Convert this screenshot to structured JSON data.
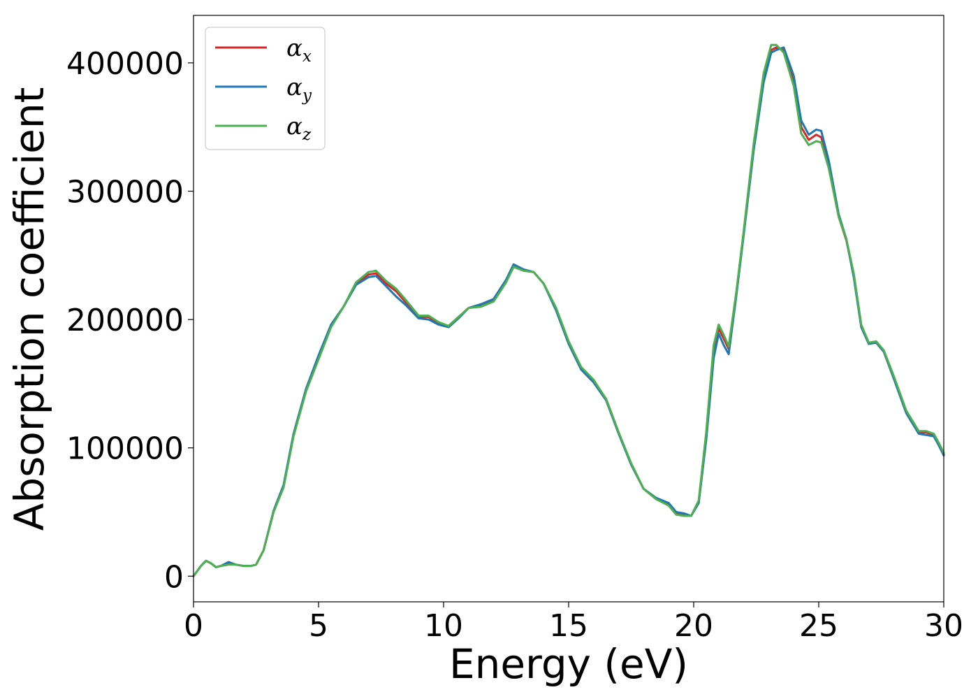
{
  "chart_data": {
    "type": "line",
    "title": "",
    "xlabel": "Energy (eV)",
    "ylabel": "Absorption coefficient",
    "xlim": [
      0,
      30
    ],
    "ylim": [
      -20000,
      437000
    ],
    "xticks": [
      0,
      5,
      10,
      15,
      20,
      25,
      30
    ],
    "yticks": [
      0,
      100000,
      200000,
      300000,
      400000
    ],
    "xtick_labels": [
      "0",
      "5",
      "10",
      "15",
      "20",
      "25",
      "30"
    ],
    "ytick_labels": [
      "0",
      "100000",
      "200000",
      "300000",
      "400000"
    ],
    "grid": false,
    "legend": {
      "position": "top-left",
      "entries": [
        {
          "base": "α",
          "sub": "x"
        },
        {
          "base": "α",
          "sub": "y"
        },
        {
          "base": "α",
          "sub": "z"
        }
      ]
    },
    "colors": [
      "#d62728",
      "#1f77b4",
      "#4caf50"
    ],
    "series": [
      {
        "x": [
          0,
          0.3,
          0.5,
          0.7,
          0.9,
          1.1,
          1.4,
          1.7,
          2.0,
          2.3,
          2.5,
          2.8,
          3.2,
          3.6,
          4.0,
          4.5,
          5.0,
          5.5,
          6.0,
          6.5,
          7.0,
          7.3,
          7.7,
          8.1,
          8.5,
          9.0,
          9.4,
          9.8,
          10.2,
          10.6,
          11.0,
          11.5,
          12.0,
          12.5,
          12.8,
          13.2,
          13.6,
          14.0,
          14.5,
          15.0,
          15.5,
          16.0,
          16.5,
          17.0,
          17.5,
          18.0,
          18.5,
          19.0,
          19.3,
          19.6,
          19.9,
          20.2,
          20.5,
          20.8,
          21.0,
          21.2,
          21.4,
          21.7,
          22.0,
          22.4,
          22.8,
          23.1,
          23.3,
          23.6,
          24.0,
          24.3,
          24.6,
          24.9,
          25.1,
          25.4,
          25.8,
          26.1,
          26.4,
          26.7,
          27.0,
          27.3,
          27.6,
          28.0,
          28.5,
          29.0,
          29.3,
          29.6,
          29.8,
          30.0
        ],
        "values": [
          0,
          8000,
          12000,
          10000,
          7000,
          8000,
          10000,
          9000,
          8000,
          8000,
          9000,
          20000,
          50000,
          70000,
          110000,
          145000,
          170000,
          195000,
          210000,
          228000,
          235000,
          236000,
          228000,
          222000,
          213000,
          202000,
          202000,
          197000,
          195000,
          202000,
          209000,
          211000,
          215000,
          230000,
          242000,
          238000,
          237000,
          228000,
          208000,
          182000,
          162000,
          152000,
          138000,
          112000,
          87000,
          68000,
          60000,
          56000,
          49000,
          48000,
          47000,
          58000,
          110000,
          175000,
          193000,
          185000,
          177000,
          220000,
          268000,
          335000,
          388000,
          410000,
          412000,
          410000,
          385000,
          350000,
          340000,
          344000,
          342000,
          320000,
          280000,
          262000,
          235000,
          195000,
          182000,
          182000,
          175000,
          155000,
          128000,
          112000,
          112000,
          110000,
          103000,
          95000
        ]
      },
      {
        "x": [
          0,
          0.3,
          0.5,
          0.7,
          0.9,
          1.1,
          1.4,
          1.7,
          2.0,
          2.3,
          2.5,
          2.8,
          3.2,
          3.6,
          4.0,
          4.5,
          5.0,
          5.5,
          6.0,
          6.5,
          7.0,
          7.3,
          7.7,
          8.1,
          8.5,
          9.0,
          9.4,
          9.8,
          10.2,
          10.6,
          11.0,
          11.5,
          12.0,
          12.5,
          12.8,
          13.2,
          13.6,
          14.0,
          14.5,
          15.0,
          15.5,
          16.0,
          16.5,
          17.0,
          17.5,
          18.0,
          18.5,
          19.0,
          19.3,
          19.6,
          19.9,
          20.2,
          20.5,
          20.8,
          21.0,
          21.2,
          21.4,
          21.7,
          22.0,
          22.4,
          22.8,
          23.1,
          23.3,
          23.6,
          24.0,
          24.3,
          24.6,
          24.9,
          25.1,
          25.4,
          25.8,
          26.1,
          26.4,
          26.7,
          27.0,
          27.3,
          27.6,
          28.0,
          28.5,
          29.0,
          29.3,
          29.6,
          29.8,
          30.0
        ],
        "values": [
          0,
          8000,
          12000,
          10000,
          7000,
          8000,
          11000,
          9000,
          8000,
          8000,
          9000,
          20000,
          51000,
          71000,
          111000,
          146000,
          172000,
          196000,
          210000,
          227000,
          233000,
          234000,
          226000,
          218000,
          211000,
          201000,
          200000,
          196000,
          194000,
          201000,
          209000,
          212000,
          216000,
          231000,
          243000,
          239000,
          237000,
          228000,
          207000,
          181000,
          161000,
          151000,
          137000,
          111000,
          87000,
          68000,
          61000,
          57000,
          50000,
          49000,
          47000,
          57000,
          106000,
          170000,
          189000,
          180000,
          173000,
          218000,
          266000,
          332000,
          385000,
          408000,
          410000,
          412000,
          390000,
          355000,
          344000,
          348000,
          347000,
          324000,
          282000,
          263000,
          233000,
          194000,
          181000,
          182000,
          175000,
          154000,
          127000,
          111000,
          110000,
          109000,
          102000,
          94000
        ]
      },
      {
        "x": [
          0,
          0.3,
          0.5,
          0.7,
          0.9,
          1.1,
          1.4,
          1.7,
          2.0,
          2.3,
          2.5,
          2.8,
          3.2,
          3.6,
          4.0,
          4.5,
          5.0,
          5.5,
          6.0,
          6.5,
          7.0,
          7.3,
          7.7,
          8.1,
          8.5,
          9.0,
          9.4,
          9.8,
          10.2,
          10.6,
          11.0,
          11.5,
          12.0,
          12.5,
          12.8,
          13.2,
          13.6,
          14.0,
          14.5,
          15.0,
          15.5,
          16.0,
          16.5,
          17.0,
          17.5,
          18.0,
          18.5,
          19.0,
          19.3,
          19.6,
          19.9,
          20.2,
          20.5,
          20.8,
          21.0,
          21.2,
          21.4,
          21.7,
          22.0,
          22.4,
          22.8,
          23.1,
          23.3,
          23.6,
          24.0,
          24.3,
          24.6,
          24.9,
          25.1,
          25.4,
          25.8,
          26.1,
          26.4,
          26.7,
          27.0,
          27.3,
          27.6,
          28.0,
          28.5,
          29.0,
          29.3,
          29.6,
          29.8,
          30.0
        ],
        "values": [
          0,
          8000,
          12000,
          10000,
          7000,
          8000,
          9000,
          9000,
          8000,
          8000,
          9000,
          20000,
          50000,
          69000,
          109000,
          144000,
          169000,
          194000,
          210000,
          229000,
          237000,
          238000,
          230000,
          224000,
          215000,
          203000,
          203000,
          198000,
          195000,
          202000,
          209000,
          210000,
          214000,
          229000,
          241000,
          238000,
          237000,
          228000,
          209000,
          183000,
          163000,
          153000,
          138000,
          112000,
          88000,
          68000,
          60000,
          55000,
          48000,
          47000,
          47000,
          59000,
          112000,
          180000,
          196000,
          188000,
          179000,
          221000,
          269000,
          337000,
          392000,
          414000,
          414000,
          408000,
          382000,
          345000,
          336000,
          339000,
          338000,
          318000,
          280000,
          263000,
          236000,
          196000,
          182000,
          183000,
          176000,
          156000,
          129000,
          113000,
          113000,
          111000,
          104000,
          96000
        ]
      }
    ]
  }
}
